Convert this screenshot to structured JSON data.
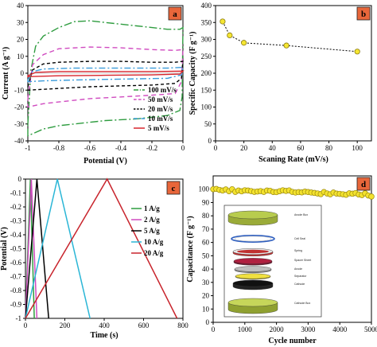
{
  "colors": {
    "panel_badge_a": "#e8663a",
    "panel_badge_b": "#e8663a",
    "panel_badge_c": "#e8663a",
    "panel_badge_d": "#e8663a"
  },
  "chart_data": [
    {
      "panel": "a",
      "type": "line",
      "xlabel": "Potential (V)",
      "ylabel": "Current (A g⁻¹)",
      "xlim": [
        -1,
        0
      ],
      "ylim": [
        -40,
        40
      ],
      "xticks": [
        "-1",
        "-0.8",
        "-0.6",
        "-0.4",
        "-0.2",
        "0"
      ],
      "yticks": [
        "40",
        "30",
        "20",
        "10",
        "0",
        "-10",
        "-20",
        "-30",
        "-40"
      ],
      "legend_position": "bottom-right",
      "series": [
        {
          "name": "100 mV/s",
          "color": "#2e9c3f",
          "dash": "10 3 2 3",
          "upper": [
            [
              -1,
              -30
            ],
            [
              -0.98,
              2
            ],
            [
              -0.95,
              16
            ],
            [
              -0.9,
              22
            ],
            [
              -0.8,
              27
            ],
            [
              -0.7,
              30.5
            ],
            [
              -0.6,
              31
            ],
            [
              -0.5,
              30
            ],
            [
              -0.3,
              28
            ],
            [
              -0.2,
              27
            ],
            [
              -0.1,
              26
            ],
            [
              -0.02,
              26
            ],
            [
              0,
              27
            ]
          ],
          "lower": [
            [
              0,
              27
            ],
            [
              -0.005,
              -14
            ],
            [
              -0.02,
              -22
            ],
            [
              -0.1,
              -25
            ],
            [
              -0.2,
              -26
            ],
            [
              -0.3,
              -27
            ],
            [
              -0.5,
              -28
            ],
            [
              -0.7,
              -30
            ],
            [
              -0.8,
              -31
            ],
            [
              -0.9,
              -33
            ],
            [
              -0.95,
              -35
            ],
            [
              -1,
              -37
            ]
          ]
        },
        {
          "name": "50 mV/s",
          "color": "#d04bc0",
          "dash": "6 4",
          "upper": [
            [
              -1,
              -15
            ],
            [
              -0.97,
              5
            ],
            [
              -0.9,
              11
            ],
            [
              -0.8,
              14.5
            ],
            [
              -0.6,
              15.5
            ],
            [
              -0.4,
              15
            ],
            [
              -0.2,
              14
            ],
            [
              -0.05,
              13.5
            ],
            [
              0,
              14
            ]
          ],
          "lower": [
            [
              0,
              14
            ],
            [
              -0.01,
              -5
            ],
            [
              -0.05,
              -12
            ],
            [
              -0.2,
              -13
            ],
            [
              -0.4,
              -14
            ],
            [
              -0.6,
              -15
            ],
            [
              -0.8,
              -17
            ],
            [
              -0.9,
              -18
            ],
            [
              -1,
              -20
            ]
          ]
        },
        {
          "name": "20 mV/s",
          "color": "#000000",
          "dash": "4 3",
          "upper": [
            [
              -1,
              -8
            ],
            [
              -0.97,
              2
            ],
            [
              -0.9,
              5.5
            ],
            [
              -0.8,
              6.5
            ],
            [
              -0.6,
              7
            ],
            [
              -0.4,
              7
            ],
            [
              -0.2,
              6.5
            ],
            [
              -0.05,
              6.5
            ],
            [
              0,
              7
            ]
          ],
          "lower": [
            [
              0,
              7
            ],
            [
              -0.01,
              -3
            ],
            [
              -0.05,
              -6
            ],
            [
              -0.2,
              -7
            ],
            [
              -0.4,
              -7.5
            ],
            [
              -0.6,
              -8
            ],
            [
              -0.8,
              -9
            ],
            [
              -0.9,
              -9.5
            ],
            [
              -1,
              -10
            ]
          ]
        },
        {
          "name": "10 mV/s",
          "color": "#3a9ad9",
          "dash": "8 3 2 3",
          "upper": [
            [
              -1,
              -4
            ],
            [
              -0.97,
              1
            ],
            [
              -0.9,
              2.5
            ],
            [
              -0.7,
              3
            ],
            [
              -0.4,
              3
            ],
            [
              -0.1,
              3
            ],
            [
              0,
              3.5
            ]
          ],
          "lower": [
            [
              0,
              3.5
            ],
            [
              -0.01,
              -1
            ],
            [
              -0.1,
              -3
            ],
            [
              -0.4,
              -3.5
            ],
            [
              -0.7,
              -4
            ],
            [
              -0.9,
              -4.5
            ],
            [
              -1,
              -5
            ]
          ]
        },
        {
          "name": "5 mV/s",
          "color": "#d8252d",
          "dash": "",
          "upper": [
            [
              -1,
              -1.5
            ],
            [
              -0.95,
              0.5
            ],
            [
              -0.8,
              1
            ],
            [
              -0.5,
              1
            ],
            [
              -0.2,
              1
            ],
            [
              0,
              1.2
            ]
          ],
          "lower": [
            [
              0,
              1.2
            ],
            [
              -0.02,
              -0.5
            ],
            [
              -0.2,
              -1
            ],
            [
              -0.5,
              -1.2
            ],
            [
              -0.8,
              -1.5
            ],
            [
              -1,
              -2
            ]
          ]
        }
      ]
    },
    {
      "panel": "b",
      "type": "scatter",
      "xlabel": "Scaning Rate (mV/s)",
      "ylabel": "Specific Capacity (F g⁻¹)",
      "xlim": [
        0,
        110
      ],
      "ylim": [
        0,
        400
      ],
      "xticks": [
        "0",
        "20",
        "40",
        "60",
        "80",
        "100"
      ],
      "yticks": [
        "0",
        "50",
        "100",
        "150",
        "200",
        "250",
        "300",
        "350",
        "400"
      ],
      "x": [
        5,
        10,
        20,
        50,
        100
      ],
      "y": [
        353,
        312,
        290,
        282,
        264
      ]
    },
    {
      "panel": "c",
      "type": "line",
      "xlabel": "Time (s)",
      "ylabel": "Potential (V)",
      "xlim": [
        0,
        800
      ],
      "ylim": [
        -1,
        0
      ],
      "xticks": [
        "0",
        "200",
        "400",
        "600",
        "800"
      ],
      "yticks": [
        "0",
        "-0.1",
        "-0.2",
        "-0.3",
        "-0.4",
        "-0.5",
        "-0.6",
        "-0.7",
        "-0.8",
        "-0.9",
        "-1"
      ],
      "legend_position": "right",
      "series": [
        {
          "name": "1 A/g",
          "color": "#2e9c3f",
          "x": [
            0,
            25,
            45
          ],
          "y": [
            -1,
            0,
            -1
          ]
        },
        {
          "name": "2 A/g",
          "color": "#d04bc0",
          "x": [
            0,
            30,
            58
          ],
          "y": [
            -1,
            0,
            -1
          ]
        },
        {
          "name": "5 A/g",
          "color": "#000000",
          "x": [
            0,
            58,
            118
          ],
          "y": [
            -1,
            0,
            -1
          ]
        },
        {
          "name": "10 A/g",
          "color": "#2ab6d6",
          "x": [
            0,
            162,
            328
          ],
          "y": [
            -1,
            0,
            -1
          ]
        },
        {
          "name": "20 A/g",
          "color": "#c8242c",
          "x": [
            0,
            415,
            770
          ],
          "y": [
            -1,
            0,
            -1
          ]
        }
      ]
    },
    {
      "panel": "d",
      "type": "scatter",
      "xlabel": "Cycle number",
      "ylabel": "Capacitance (F g⁻¹)",
      "xlim": [
        0,
        5000
      ],
      "ylim": [
        0,
        110
      ],
      "xticks": [
        "0",
        "1000",
        "2000",
        "3000",
        "4000",
        "5000"
      ],
      "yticks": [
        "0",
        "10",
        "20",
        "30",
        "40",
        "50",
        "60",
        "70",
        "80",
        "90",
        "100"
      ],
      "x": [
        0,
        100,
        200,
        300,
        400,
        500,
        600,
        700,
        800,
        900,
        1000,
        1100,
        1200,
        1300,
        1400,
        1500,
        1600,
        1700,
        1800,
        1900,
        2000,
        2100,
        2200,
        2300,
        2400,
        2500,
        2600,
        2700,
        2800,
        2900,
        3000,
        3100,
        3200,
        3300,
        3400,
        3500,
        3600,
        3700,
        3800,
        3900,
        4000,
        4100,
        4200,
        4300,
        4400,
        4500,
        4600,
        4700,
        4800,
        4900,
        5000
      ],
      "y": [
        100,
        100.2,
        99.5,
        99,
        99.8,
        98.5,
        100,
        98,
        99,
        98.4,
        99.2,
        99,
        98.6,
        98,
        98.3,
        98.6,
        98,
        99,
        98.8,
        97.9,
        97.8,
        98.5,
        99.2,
        98.7,
        99.1,
        98,
        97.5,
        97.8,
        97.6,
        98.2,
        97.9,
        97.5,
        97.2,
        96.8,
        96.3,
        97.9,
        96.8,
        96.2,
        97.5,
        96.7,
        96.5,
        96.2,
        95.8,
        96.9,
        96.6,
        97.1,
        96,
        95.6,
        96.9,
        95.3,
        94.5
      ],
      "inset_labels": [
        "Anode Box",
        "Cell Seal",
        "Spring",
        "Spacer Sheet",
        "Anode",
        "Separator",
        "Cathode",
        "Cathode Box"
      ]
    }
  ],
  "badges": [
    "a",
    "b",
    "c",
    "d"
  ]
}
